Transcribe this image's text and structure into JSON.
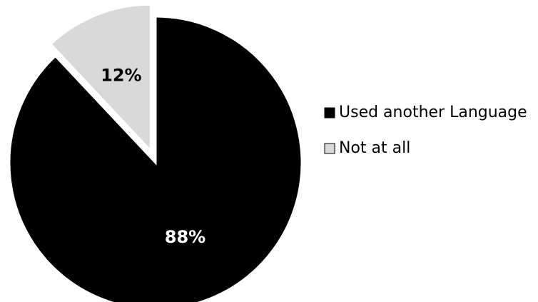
{
  "chart_data": {
    "type": "pie",
    "title": "",
    "categories": [
      "Used another Language",
      "Not at all"
    ],
    "values": [
      88,
      12
    ],
    "value_labels": [
      "88%",
      "12%"
    ],
    "exploded": [
      "Not at all"
    ],
    "legend_position": "right",
    "colors": {
      "Used another Language": "#000000",
      "Not at all": "#d9d9d9",
      "slice_outline": "#ffffff",
      "label_on_dark": "#ffffff",
      "label_on_light": "#000000",
      "legend_text": "#000000",
      "legend_swatch_outline": "#000000"
    }
  }
}
